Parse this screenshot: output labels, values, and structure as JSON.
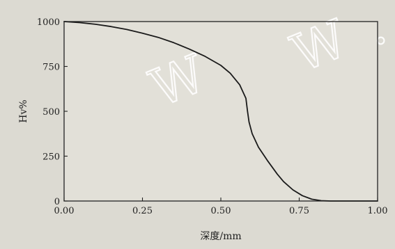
{
  "chart_data": {
    "type": "line",
    "title": "",
    "xlabel": "深度/mm",
    "ylabel": "Hv%",
    "xlim": [
      0,
      1.0
    ],
    "ylim": [
      0,
      1000
    ],
    "x_ticks": [
      "0.00",
      "0.25",
      "0.50",
      "0.75",
      "1.00"
    ],
    "y_ticks": [
      "0",
      "250",
      "500",
      "750",
      "1000"
    ],
    "grid": false,
    "legend": "none",
    "series": [
      {
        "color": "#1a1a1a",
        "x": [
          0.0,
          0.05,
          0.1,
          0.15,
          0.2,
          0.25,
          0.3,
          0.35,
          0.4,
          0.45,
          0.5,
          0.53,
          0.56,
          0.58,
          0.585,
          0.59,
          0.6,
          0.62,
          0.65,
          0.68,
          0.7,
          0.73,
          0.76,
          0.79,
          0.82,
          0.85,
          0.9,
          0.95,
          1.0
        ],
        "y": [
          1000,
          994,
          985,
          972,
          956,
          935,
          912,
          882,
          846,
          806,
          756,
          712,
          648,
          572,
          500,
          440,
          375,
          300,
          222,
          150,
          108,
          62,
          30,
          10,
          2,
          0,
          0,
          0,
          0
        ]
      }
    ]
  },
  "watermark": {
    "letters": [
      "W",
      "W",
      "."
    ],
    "color": "#ffffff"
  }
}
